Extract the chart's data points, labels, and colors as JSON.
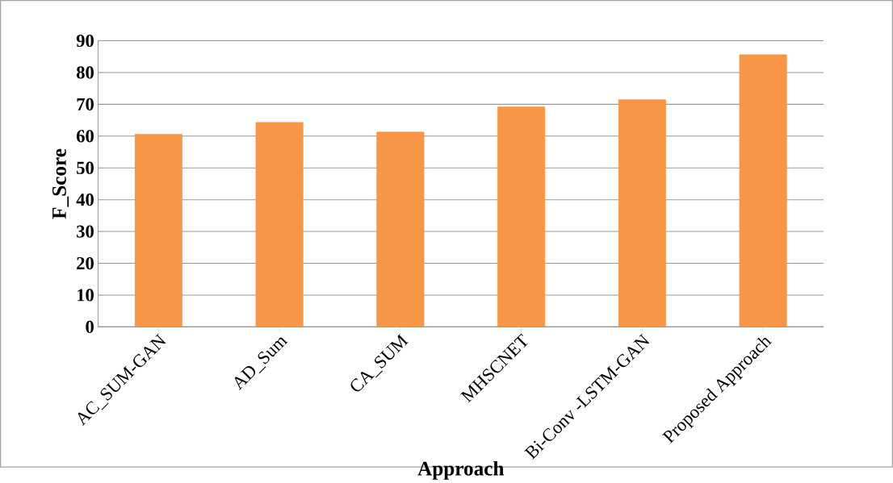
{
  "chart_data": {
    "type": "bar",
    "xlabel": "Approach",
    "ylabel": "F_Score",
    "categories": [
      "AC_SUM-GAN",
      "AD_Sum",
      "CA_SUM",
      "MHSCNET",
      "Bi-Conv -LSTM-GAN",
      "Proposed Approach"
    ],
    "values": [
      60.6,
      64.3,
      61.3,
      69.2,
      71.5,
      85.6
    ],
    "color": "#f79646",
    "ylim": [
      0,
      90
    ],
    "yticks": [
      0,
      10,
      20,
      30,
      40,
      50,
      60,
      70,
      80,
      90
    ],
    "grid": "y"
  }
}
